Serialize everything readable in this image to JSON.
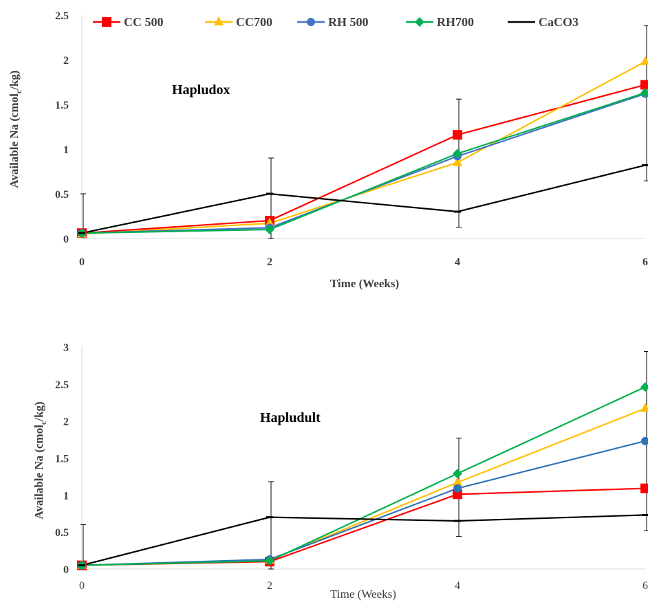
{
  "chart_data": [
    {
      "type": "line",
      "title": "Hapludox",
      "xlabel": "Time (Weeks)",
      "ylabel_main": "Available  Na (cmol",
      "ylabel_sub": "c",
      "ylabel_tail": "/kg)",
      "x": [
        0,
        2,
        4,
        6
      ],
      "xticks": [
        "0",
        "2",
        "4",
        "6"
      ],
      "yticks": [
        "0",
        "0.5",
        "1",
        "1.5",
        "2",
        "2.5"
      ],
      "ylim": [
        0,
        2.5
      ],
      "xlim": [
        0,
        6
      ],
      "legend_position": "top",
      "grid": false,
      "series": [
        {
          "name": "CC 500",
          "color": "#ff0000",
          "marker": "square",
          "values": [
            0.06,
            0.2,
            1.16,
            1.72
          ]
        },
        {
          "name": "CC700",
          "color": "#ffc000",
          "marker": "triangle",
          "values": [
            0.05,
            0.17,
            0.85,
            1.98
          ]
        },
        {
          "name": "RH 500",
          "color": "#4472c4",
          "marker": "circle",
          "values": [
            0.06,
            0.12,
            0.92,
            1.62
          ]
        },
        {
          "name": "RH700",
          "color": "#00b050",
          "marker": "diamond",
          "values": [
            0.06,
            0.1,
            0.95,
            1.63
          ]
        },
        {
          "name": "CaCO3",
          "color": "#000000",
          "marker": "dash",
          "values": [
            0.06,
            0.5,
            0.3,
            0.82
          ]
        }
      ]
    },
    {
      "type": "line",
      "title": "Hapludult",
      "xlabel": "Time (Weeks)",
      "ylabel_main": "Available  Na (cmol",
      "ylabel_sub": "c",
      "ylabel_tail": "/kg)",
      "x": [
        0,
        2,
        4,
        6
      ],
      "xticks": [
        "0",
        "2",
        "4",
        "6"
      ],
      "yticks": [
        "0",
        "0.5",
        "1",
        "1.5",
        "2",
        "2.5",
        "3"
      ],
      "ylim": [
        0,
        3
      ],
      "xlim": [
        0,
        6
      ],
      "grid": false,
      "series": [
        {
          "name": "CC 500",
          "color": "#ff0000",
          "marker": "square",
          "values": [
            0.05,
            0.1,
            1.01,
            1.09
          ]
        },
        {
          "name": "CC700",
          "color": "#ffc000",
          "marker": "triangle",
          "values": [
            0.05,
            0.12,
            1.17,
            2.17
          ]
        },
        {
          "name": "RH 500",
          "color": "#2e75b6",
          "marker": "circle",
          "values": [
            0.05,
            0.13,
            1.09,
            1.73
          ]
        },
        {
          "name": "RH700",
          "color": "#00b050",
          "marker": "diamond",
          "values": [
            0.05,
            0.11,
            1.29,
            2.46
          ]
        },
        {
          "name": "CaCO3",
          "color": "#000000",
          "marker": "dash",
          "values": [
            0.05,
            0.7,
            0.65,
            0.73
          ]
        }
      ]
    }
  ]
}
